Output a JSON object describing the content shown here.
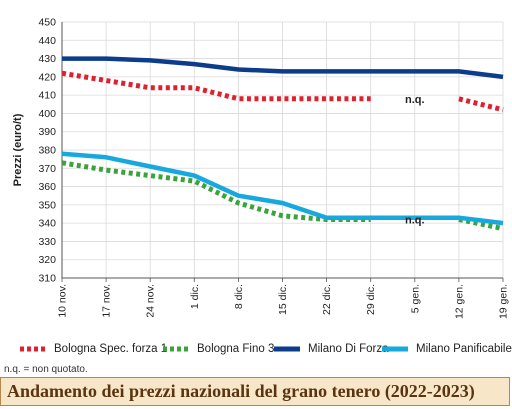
{
  "chart_data": {
    "type": "line",
    "ylabel": "Prezzi (euro/t)",
    "xlabel": "",
    "ylim": [
      310,
      450
    ],
    "yticks": [
      310,
      320,
      330,
      340,
      350,
      360,
      370,
      380,
      390,
      400,
      410,
      420,
      430,
      440,
      450
    ],
    "categories": [
      "10 nov.",
      "17 nov.",
      "24 nov.",
      "1 dic.",
      "8 dic.",
      "15 dic.",
      "22 dic.",
      "29 dic.",
      "5 gen.",
      "12 gen.",
      "19 gen."
    ],
    "grid": true,
    "legend_position": "bottom",
    "series": [
      {
        "name": "Bologna Spec. forza 1",
        "color": "#e0202e",
        "style": "dotted",
        "values": [
          422,
          418,
          414,
          414,
          408,
          408,
          408,
          408,
          null,
          408,
          402
        ]
      },
      {
        "name": "Bologna Fino 3",
        "color": "#3ca33c",
        "style": "dotted",
        "values": [
          373,
          369,
          366,
          363,
          351,
          344,
          342,
          342,
          null,
          342,
          337
        ]
      },
      {
        "name": "Milano Di Forza",
        "color": "#0d3c8c",
        "style": "solid",
        "values": [
          430,
          430,
          429,
          427,
          424,
          423,
          423,
          423,
          423,
          423,
          420
        ]
      },
      {
        "name": "Milano Panificabile",
        "color": "#17a8dd",
        "style": "solid",
        "values": [
          378,
          376,
          371,
          366,
          355,
          351,
          343,
          343,
          343,
          343,
          340
        ]
      }
    ],
    "annotations": [
      {
        "text": "n.q.",
        "x": "5 gen.",
        "y": 408
      },
      {
        "text": "n.q.",
        "x": "5 gen.",
        "y": 342
      }
    ]
  },
  "note": "n.q. = non quotato.",
  "title": "Andamento dei prezzi nazionali del grano tenero (2022-2023)"
}
